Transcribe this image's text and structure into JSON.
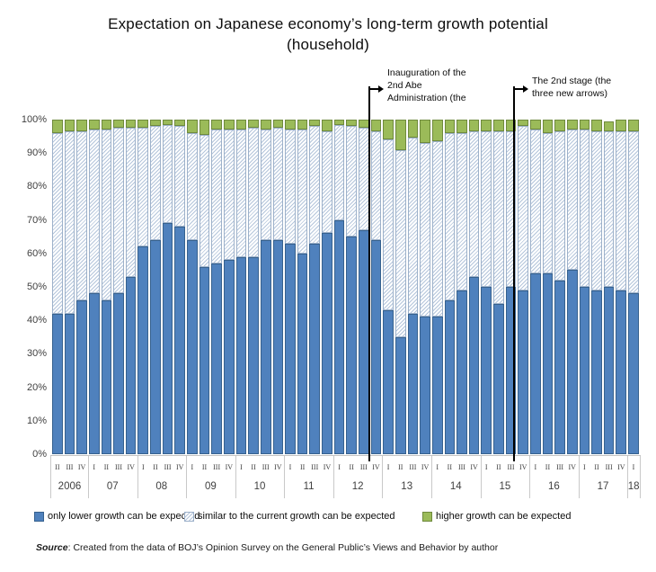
{
  "title": {
    "line1": "Expectation on Japanese economy’s long-term growth potential",
    "line2": "(household)"
  },
  "annotations": [
    {
      "id": "abe-inauguration",
      "lines": [
        "Inauguration of the",
        "2nd Abe",
        "Administration (the"
      ]
    },
    {
      "id": "second-stage",
      "lines": [
        "The 2nd stage (the",
        "three new arrows)"
      ]
    }
  ],
  "source": {
    "prefix": "Source",
    "text": ": Created from the data of BOJ’s Opinion Survey on the General Public’s Views and Behavior by author"
  },
  "chart_data": {
    "type": "bar",
    "subtype": "stacked-100-percent",
    "grid": false,
    "legend_position": "bottom",
    "y_ticks": [
      "100%",
      "90%",
      "80%",
      "70%",
      "60%",
      "50%",
      "40%",
      "30%",
      "20%",
      "10%",
      "0%"
    ],
    "ylim": [
      0,
      100
    ],
    "year_groups": [
      {
        "year": "2006",
        "quarters": [
          "II",
          "III",
          "IV"
        ]
      },
      {
        "year": "07",
        "quarters": [
          "I",
          "II",
          "III",
          "IV"
        ]
      },
      {
        "year": "08",
        "quarters": [
          "I",
          "II",
          "III",
          "IV"
        ]
      },
      {
        "year": "09",
        "quarters": [
          "I",
          "II",
          "III",
          "IV"
        ]
      },
      {
        "year": "10",
        "quarters": [
          "I",
          "II",
          "III",
          "IV"
        ]
      },
      {
        "year": "11",
        "quarters": [
          "I",
          "II",
          "III",
          "IV"
        ]
      },
      {
        "year": "12",
        "quarters": [
          "I",
          "II",
          "III",
          "IV"
        ]
      },
      {
        "year": "13",
        "quarters": [
          "I",
          "II",
          "III",
          "IV"
        ]
      },
      {
        "year": "14",
        "quarters": [
          "I",
          "II",
          "III",
          "IV"
        ]
      },
      {
        "year": "15",
        "quarters": [
          "I",
          "II",
          "III",
          "IV"
        ]
      },
      {
        "year": "16",
        "quarters": [
          "I",
          "II",
          "III",
          "IV"
        ]
      },
      {
        "year": "17",
        "quarters": [
          "I",
          "II",
          "III",
          "IV"
        ]
      },
      {
        "year": "18",
        "quarters": [
          "I"
        ]
      }
    ],
    "series": [
      {
        "name": "only lower growth can be expected",
        "style": "solid",
        "color": "#4f81bd",
        "border_color": "#36618e",
        "values": [
          42,
          42,
          46,
          48,
          46,
          48,
          53,
          62,
          64,
          69,
          68,
          64,
          56,
          57,
          58,
          59,
          59,
          64,
          64,
          63,
          60,
          63,
          66,
          70,
          65,
          67,
          64,
          43,
          35,
          42,
          41,
          41,
          46,
          49,
          53,
          50,
          45,
          50,
          49,
          54,
          54,
          52,
          55,
          50,
          49,
          50,
          49,
          48
        ]
      },
      {
        "name": "similar to the current growth can be expected",
        "style": "diagonal-hatch",
        "color": "#ffffff",
        "hatch_color": "#b4c5db",
        "border_color": "#9db1ca",
        "values": [
          54,
          54.5,
          50.5,
          49,
          51,
          49.5,
          44.5,
          35.5,
          34,
          29.5,
          30,
          32,
          39.5,
          40,
          39,
          38,
          38.5,
          33,
          33.5,
          34,
          37,
          35,
          30.5,
          28.5,
          33,
          30.5,
          32.5,
          51,
          56,
          52.5,
          52,
          52.5,
          50,
          47,
          43.5,
          46.5,
          51.5,
          46.5,
          49,
          43,
          42,
          44.5,
          42,
          47,
          47.5,
          46.5,
          47.5,
          48.5
        ]
      },
      {
        "name": "higher growth can be expected",
        "style": "solid",
        "color": "#9bbb59",
        "border_color": "#6f8a3d",
        "values": [
          4,
          3.5,
          3.5,
          3,
          3,
          2.5,
          2.5,
          2.5,
          2,
          1.5,
          2,
          4,
          4.5,
          3,
          3,
          3,
          2.5,
          3,
          2.5,
          3,
          3,
          2,
          3.5,
          1.5,
          2,
          2.5,
          3.5,
          6,
          9,
          5.5,
          7,
          6.5,
          4,
          4,
          3.5,
          3.5,
          3.5,
          3.5,
          2,
          3,
          4,
          3.5,
          3,
          3,
          3.5,
          3,
          3.5,
          3.5
        ]
      }
    ],
    "annotation_marker_x": [
      "2012-IV",
      "2015-IV"
    ]
  }
}
